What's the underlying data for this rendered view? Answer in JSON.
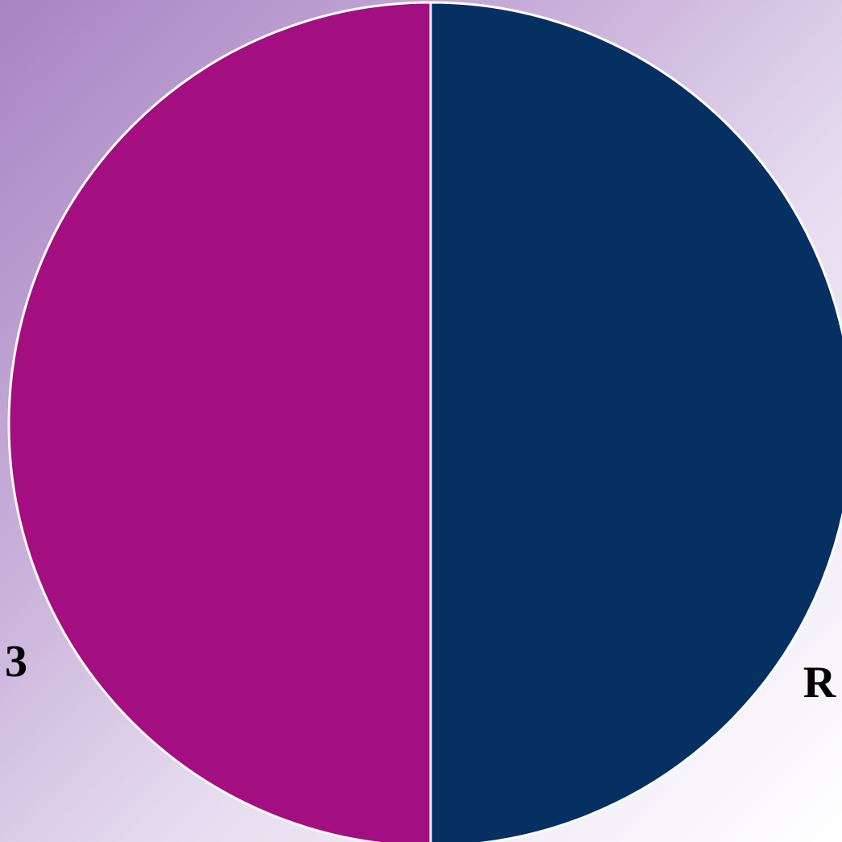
{
  "chart_data": {
    "type": "pie",
    "categories": [
      "3",
      "R"
    ],
    "values": [
      50,
      50
    ],
    "colors": [
      "#a30f80",
      "#063061"
    ],
    "slice_border_color": "#ffffff",
    "start_angle": "top",
    "direction": "counterclockwise",
    "labels_visible": [
      "3",
      "R"
    ]
  }
}
